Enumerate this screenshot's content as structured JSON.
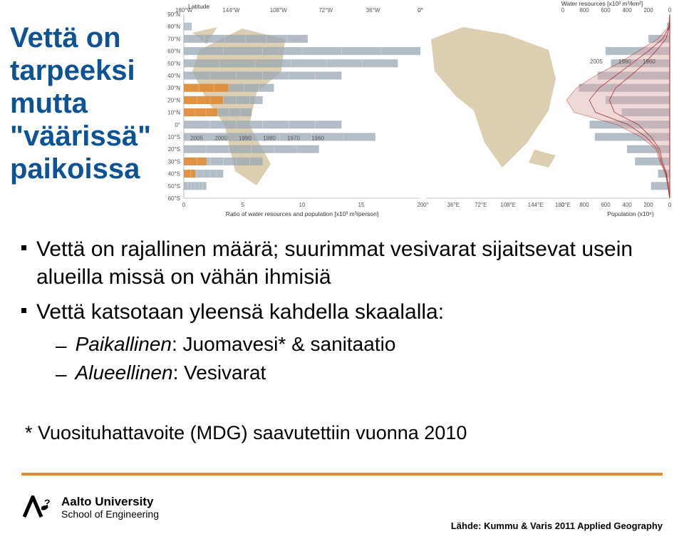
{
  "title": {
    "l1": "Vettä on",
    "l2": "tarpeeksi",
    "l3": "mutta",
    "l4": "\"väärissä\"",
    "l5": "paikoissa",
    "color": "#0b5394",
    "fontsize": 40
  },
  "bullets": [
    {
      "text": "Vettä on rajallinen määrä; suurimmat vesivarat sijaitsevat usein alueilla missä on vähän ihmisiä"
    },
    {
      "text": "Vettä katsotaan yleensä kahdella skaalalla:",
      "sub": [
        {
          "label": "Paikallinen",
          "rest": ": Juomavesi* & sanitaatio"
        },
        {
          "label": "Alueellinen",
          "rest": ": Vesivarat"
        }
      ]
    }
  ],
  "footnote": "* Vuosituhattavoite (MDG) saavutettiin vuonna 2010",
  "logo": {
    "line1": "Aalto University",
    "line2": "School of Engineering"
  },
  "source": "Lähde: Kummu & Varis 2011 Applied Geography",
  "divider_color": "#e98b2a",
  "chart": {
    "left_panel": {
      "y_title": "Latitude",
      "y_ticks": [
        "90°N",
        "80°N",
        "70°N",
        "60°N",
        "50°N",
        "40°N",
        "30°N",
        "20°N",
        "10°N",
        "0°",
        "10°S",
        "20°S",
        "30°S",
        "40°S",
        "50°S",
        "60°S"
      ],
      "top_x_ticks": [
        "180°W",
        "144°W",
        "108°W",
        "72°W",
        "36°W",
        "0°"
      ],
      "bottom_x_title": "Ratio of water resources and population [x10³ m³/person]",
      "bottom_x_ticks": [
        0,
        5,
        10,
        15,
        20
      ],
      "map_color": "#d7c9a8",
      "bar_colors": {
        "base": "#9aa7b4",
        "accent": "#e98b2a"
      },
      "decade_labels": [
        "2005",
        "2000",
        "1990",
        "1980",
        "1970",
        "1960"
      ],
      "bars_by_lat": [
        {
          "lat": "90°N",
          "len": 0
        },
        {
          "lat": "80°N",
          "len": 0.7
        },
        {
          "lat": "70°N",
          "len": 11
        },
        {
          "lat": "60°N",
          "len": 21
        },
        {
          "lat": "50°N",
          "len": 19
        },
        {
          "lat": "40°N",
          "len": 14
        },
        {
          "lat": "30°N",
          "len": 8,
          "accent": 4
        },
        {
          "lat": "20°N",
          "len": 7,
          "accent": 3.5
        },
        {
          "lat": "10°N",
          "len": 6,
          "accent": 3
        },
        {
          "lat": "0°",
          "len": 14
        },
        {
          "lat": "10°S",
          "len": 17
        },
        {
          "lat": "20°S",
          "len": 12
        },
        {
          "lat": "30°S",
          "len": 7,
          "accent": 2
        },
        {
          "lat": "40°S",
          "len": 3.5,
          "accent": 1
        },
        {
          "lat": "50°S",
          "len": 2
        },
        {
          "lat": "60°S",
          "len": 0
        }
      ]
    },
    "right_panel": {
      "top_title": "Water resources [x10³ m³/km²]",
      "top_ticks": [
        0,
        800,
        600,
        400,
        200,
        0
      ],
      "bottom_title": "Population (x10⁶)",
      "bottom_title_color": "#b33838",
      "bottom_ticks_left": [
        "0°",
        "36°E",
        "72°E",
        "108°E",
        "144°E",
        "180°E"
      ],
      "bottom_ticks_right": [
        0,
        800,
        600,
        400,
        200,
        0
      ],
      "map_color": "#d7c9a8",
      "bar_color": "#9aa7b4",
      "population_curve_color": "#a02020",
      "population_fill": "#dcaaaa",
      "year_labels": [
        "2005",
        "1980",
        "1960"
      ],
      "water_bars": [
        0,
        5,
        40,
        120,
        110,
        135,
        170,
        120,
        90,
        150,
        140,
        80,
        65,
        22,
        35,
        0
      ],
      "population_1960": [
        0,
        2,
        30,
        110,
        200,
        310,
        430,
        480,
        440,
        250,
        150,
        80,
        60,
        25,
        12,
        0
      ],
      "population_1980": [
        0,
        4,
        55,
        170,
        300,
        430,
        560,
        640,
        590,
        330,
        190,
        95,
        70,
        30,
        14,
        0
      ],
      "population_2005": [
        0,
        8,
        95,
        250,
        410,
        590,
        740,
        820,
        760,
        420,
        230,
        110,
        80,
        35,
        16,
        0
      ]
    }
  }
}
